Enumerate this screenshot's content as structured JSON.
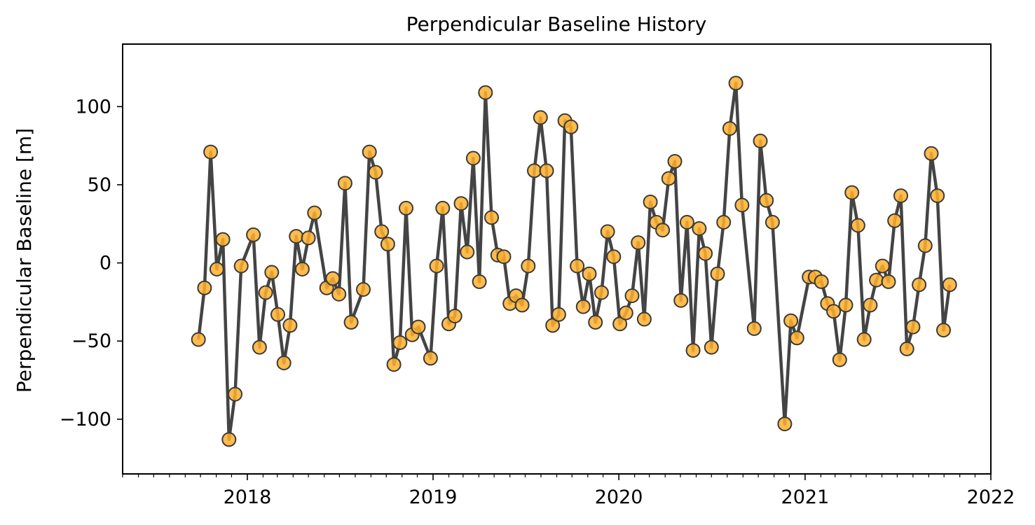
{
  "chart_data": {
    "type": "line",
    "title": "Perpendicular Baseline History",
    "xlabel": "",
    "ylabel": "Perpendicular Baseline [m]",
    "xlim": [
      "2017-05-01",
      "2022-01-01"
    ],
    "ylim": [
      -135,
      140
    ],
    "x_ticks": [
      "2018",
      "2019",
      "2020",
      "2021",
      "2022"
    ],
    "y_ticks": [
      100,
      50,
      0,
      -50,
      -100
    ],
    "y_tick_labels": [
      "100",
      "50",
      "0",
      "−50",
      "−100"
    ],
    "minor_ticks": "monthly",
    "grid": false,
    "legend": "none",
    "line_color": "#444444",
    "marker_fill": "#FFB02E",
    "marker_edge": "#3a3a3a",
    "series": [
      {
        "x": [
          "2017-09-27",
          "2017-10-09",
          "2017-10-21",
          "2017-11-02",
          "2017-11-14",
          "2017-11-26",
          "2017-12-08",
          "2017-12-20",
          "2018-01-13",
          "2018-01-25",
          "2018-02-06",
          "2018-02-18",
          "2018-03-02",
          "2018-03-14",
          "2018-03-26",
          "2018-04-07",
          "2018-04-19",
          "2018-05-01",
          "2018-05-13",
          "2018-06-06",
          "2018-06-18",
          "2018-06-30",
          "2018-07-12",
          "2018-07-24",
          "2018-08-17",
          "2018-08-29",
          "2018-09-10",
          "2018-09-22",
          "2018-10-04",
          "2018-10-16",
          "2018-10-28",
          "2018-11-09",
          "2018-11-21",
          "2018-12-03",
          "2018-12-27",
          "2019-01-08",
          "2019-01-20",
          "2019-02-01",
          "2019-02-13",
          "2019-02-25",
          "2019-03-09",
          "2019-03-21",
          "2019-04-02",
          "2019-04-14",
          "2019-04-26",
          "2019-05-08",
          "2019-05-20",
          "2019-06-01",
          "2019-06-13",
          "2019-06-25",
          "2019-07-07",
          "2019-07-19",
          "2019-07-31",
          "2019-08-12",
          "2019-08-24",
          "2019-09-05",
          "2019-09-17",
          "2019-09-29",
          "2019-10-11",
          "2019-10-23",
          "2019-11-04",
          "2019-11-16",
          "2019-11-28",
          "2019-12-10",
          "2019-12-22",
          "2020-01-03",
          "2020-01-15",
          "2020-01-27",
          "2020-02-08",
          "2020-02-20",
          "2020-03-03",
          "2020-03-15",
          "2020-03-27",
          "2020-04-08",
          "2020-04-20",
          "2020-05-02",
          "2020-05-14",
          "2020-05-26",
          "2020-06-07",
          "2020-06-19",
          "2020-07-01",
          "2020-07-13",
          "2020-07-25",
          "2020-08-06",
          "2020-08-18",
          "2020-08-30",
          "2020-09-23",
          "2020-10-05",
          "2020-10-17",
          "2020-10-29",
          "2020-11-22",
          "2020-12-04",
          "2020-12-16",
          "2021-01-09",
          "2021-01-21",
          "2021-02-02",
          "2021-02-14",
          "2021-02-26",
          "2021-03-10",
          "2021-03-22",
          "2021-04-03",
          "2021-04-15",
          "2021-04-27",
          "2021-05-09",
          "2021-05-21",
          "2021-06-02",
          "2021-06-14",
          "2021-06-26",
          "2021-07-08",
          "2021-07-20",
          "2021-08-01",
          "2021-08-13",
          "2021-08-25",
          "2021-09-06",
          "2021-09-18",
          "2021-09-30",
          "2021-10-12"
        ],
        "y": [
          -49,
          -16,
          71,
          -4,
          15,
          -113,
          -84,
          -2,
          18,
          -54,
          -19,
          -6,
          -33,
          -64,
          -40,
          17,
          -4,
          16,
          32,
          -16,
          -10,
          -20,
          51,
          -38,
          -17,
          71,
          58,
          20,
          12,
          -65,
          -51,
          35,
          -46,
          -41,
          -61,
          -2,
          35,
          -39,
          -34,
          38,
          7,
          67,
          -12,
          109,
          29,
          5,
          4,
          -26,
          -21,
          -27,
          -2,
          59,
          93,
          59,
          -40,
          -33,
          91,
          87,
          -2,
          -28,
          -7,
          -38,
          -19,
          20,
          4,
          -39,
          -32,
          -21,
          13,
          -36,
          39,
          26,
          21,
          54,
          65,
          -24,
          26,
          -56,
          22,
          6,
          -54,
          -7,
          26,
          86,
          115,
          37,
          -42,
          78,
          40,
          26,
          -103,
          -37,
          -48,
          -9,
          -9,
          -12,
          -26,
          -31,
          -62,
          -27,
          45,
          24,
          -49,
          -27,
          -11,
          -2,
          -12,
          27,
          43,
          -55,
          -41,
          -14,
          11,
          70,
          43,
          -43,
          -14
        ]
      }
    ]
  }
}
